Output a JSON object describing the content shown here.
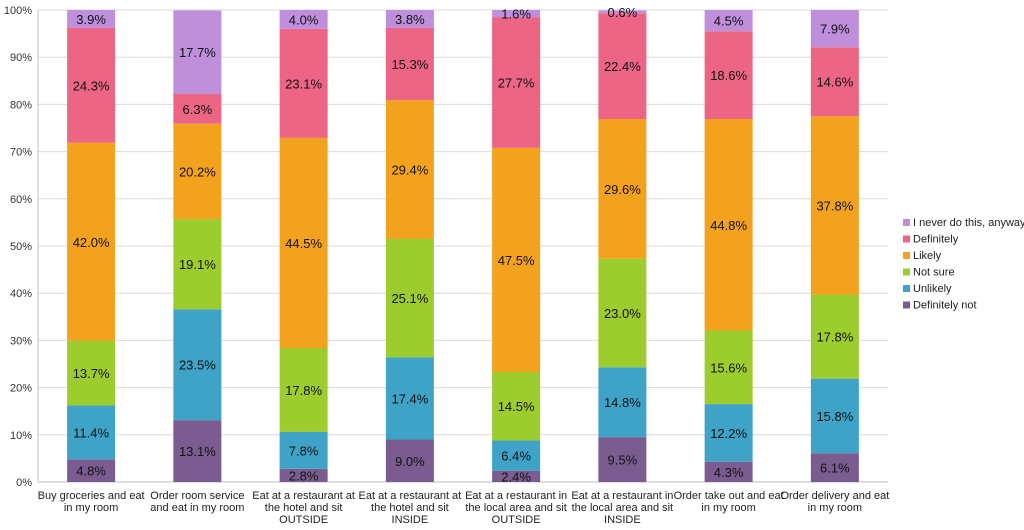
{
  "chart_data": {
    "type": "bar",
    "stacked": "percent",
    "ylim": [
      0,
      100
    ],
    "y_ticks": [
      "0%",
      "10%",
      "20%",
      "30%",
      "40%",
      "50%",
      "60%",
      "70%",
      "80%",
      "90%",
      "100%"
    ],
    "grid": true,
    "legend_position": "right",
    "categories": [
      [
        "Buy groceries and eat",
        "in my room"
      ],
      [
        "Order room service",
        "and eat in my room"
      ],
      [
        "Eat at a restaurant at",
        "the hotel and sit",
        "OUTSIDE"
      ],
      [
        "Eat at a restaurant at",
        "the hotel and sit",
        "INSIDE"
      ],
      [
        "Eat at a restaurant in",
        "the local area and sit",
        "OUTSIDE"
      ],
      [
        "Eat at a restaurant in",
        "the local area and sit",
        "INSIDE"
      ],
      [
        "Order take out and eat",
        "in my room"
      ],
      [
        "Order delivery and eat",
        "in my room"
      ]
    ],
    "series": [
      {
        "name": "Definitely not",
        "color": "#7b5c90",
        "values": [
          4.8,
          13.1,
          2.8,
          9.0,
          2.4,
          9.5,
          4.3,
          6.1
        ],
        "labels": [
          "4.8%",
          "13.1%",
          "2.8%",
          "9.0%",
          "2.4%",
          "9.5%",
          "4.3%",
          "6.1%"
        ]
      },
      {
        "name": "Unlikely",
        "color": "#3ea3c6",
        "values": [
          11.4,
          23.5,
          7.8,
          17.4,
          6.4,
          14.8,
          12.2,
          15.8
        ],
        "labels": [
          "11.4%",
          "23.5%",
          "7.8%",
          "17.4%",
          "6.4%",
          "14.8%",
          "12.2%",
          "15.8%"
        ]
      },
      {
        "name": "Not sure",
        "color": "#9dcc2e",
        "values": [
          13.7,
          19.1,
          17.8,
          25.1,
          14.5,
          23.0,
          15.6,
          17.8
        ],
        "labels": [
          "13.7%",
          "19.1%",
          "17.8%",
          "25.1%",
          "14.5%",
          "23.0%",
          "15.6%",
          "17.8%"
        ]
      },
      {
        "name": "Likely",
        "color": "#f3a21d",
        "values": [
          42.0,
          20.2,
          44.5,
          29.4,
          47.5,
          29.6,
          44.8,
          37.8
        ],
        "labels": [
          "42.0%",
          "20.2%",
          "44.5%",
          "29.4%",
          "47.5%",
          "29.6%",
          "44.8%",
          "37.8%"
        ]
      },
      {
        "name": "Definitely",
        "color": "#ec6585",
        "values": [
          24.3,
          6.3,
          23.1,
          15.3,
          27.7,
          22.4,
          18.6,
          14.6
        ],
        "labels": [
          "24.3%",
          "6.3%",
          "23.1%",
          "15.3%",
          "27.7%",
          "22.4%",
          "18.6%",
          "14.6%"
        ]
      },
      {
        "name": "I never do this, anyway",
        "color": "#bf8fdc",
        "values": [
          3.9,
          17.7,
          4.0,
          3.8,
          1.6,
          0.6,
          4.5,
          7.9
        ],
        "labels": [
          "3.9%",
          "17.7%",
          "4.0%",
          "3.8%",
          "1.6%",
          "0.6%",
          "4.5%",
          "7.9%"
        ]
      }
    ],
    "legend_order": [
      "I never do this, anyway",
      "Definitely",
      "Likely",
      "Not sure",
      "Unlikely",
      "Definitely not"
    ]
  }
}
